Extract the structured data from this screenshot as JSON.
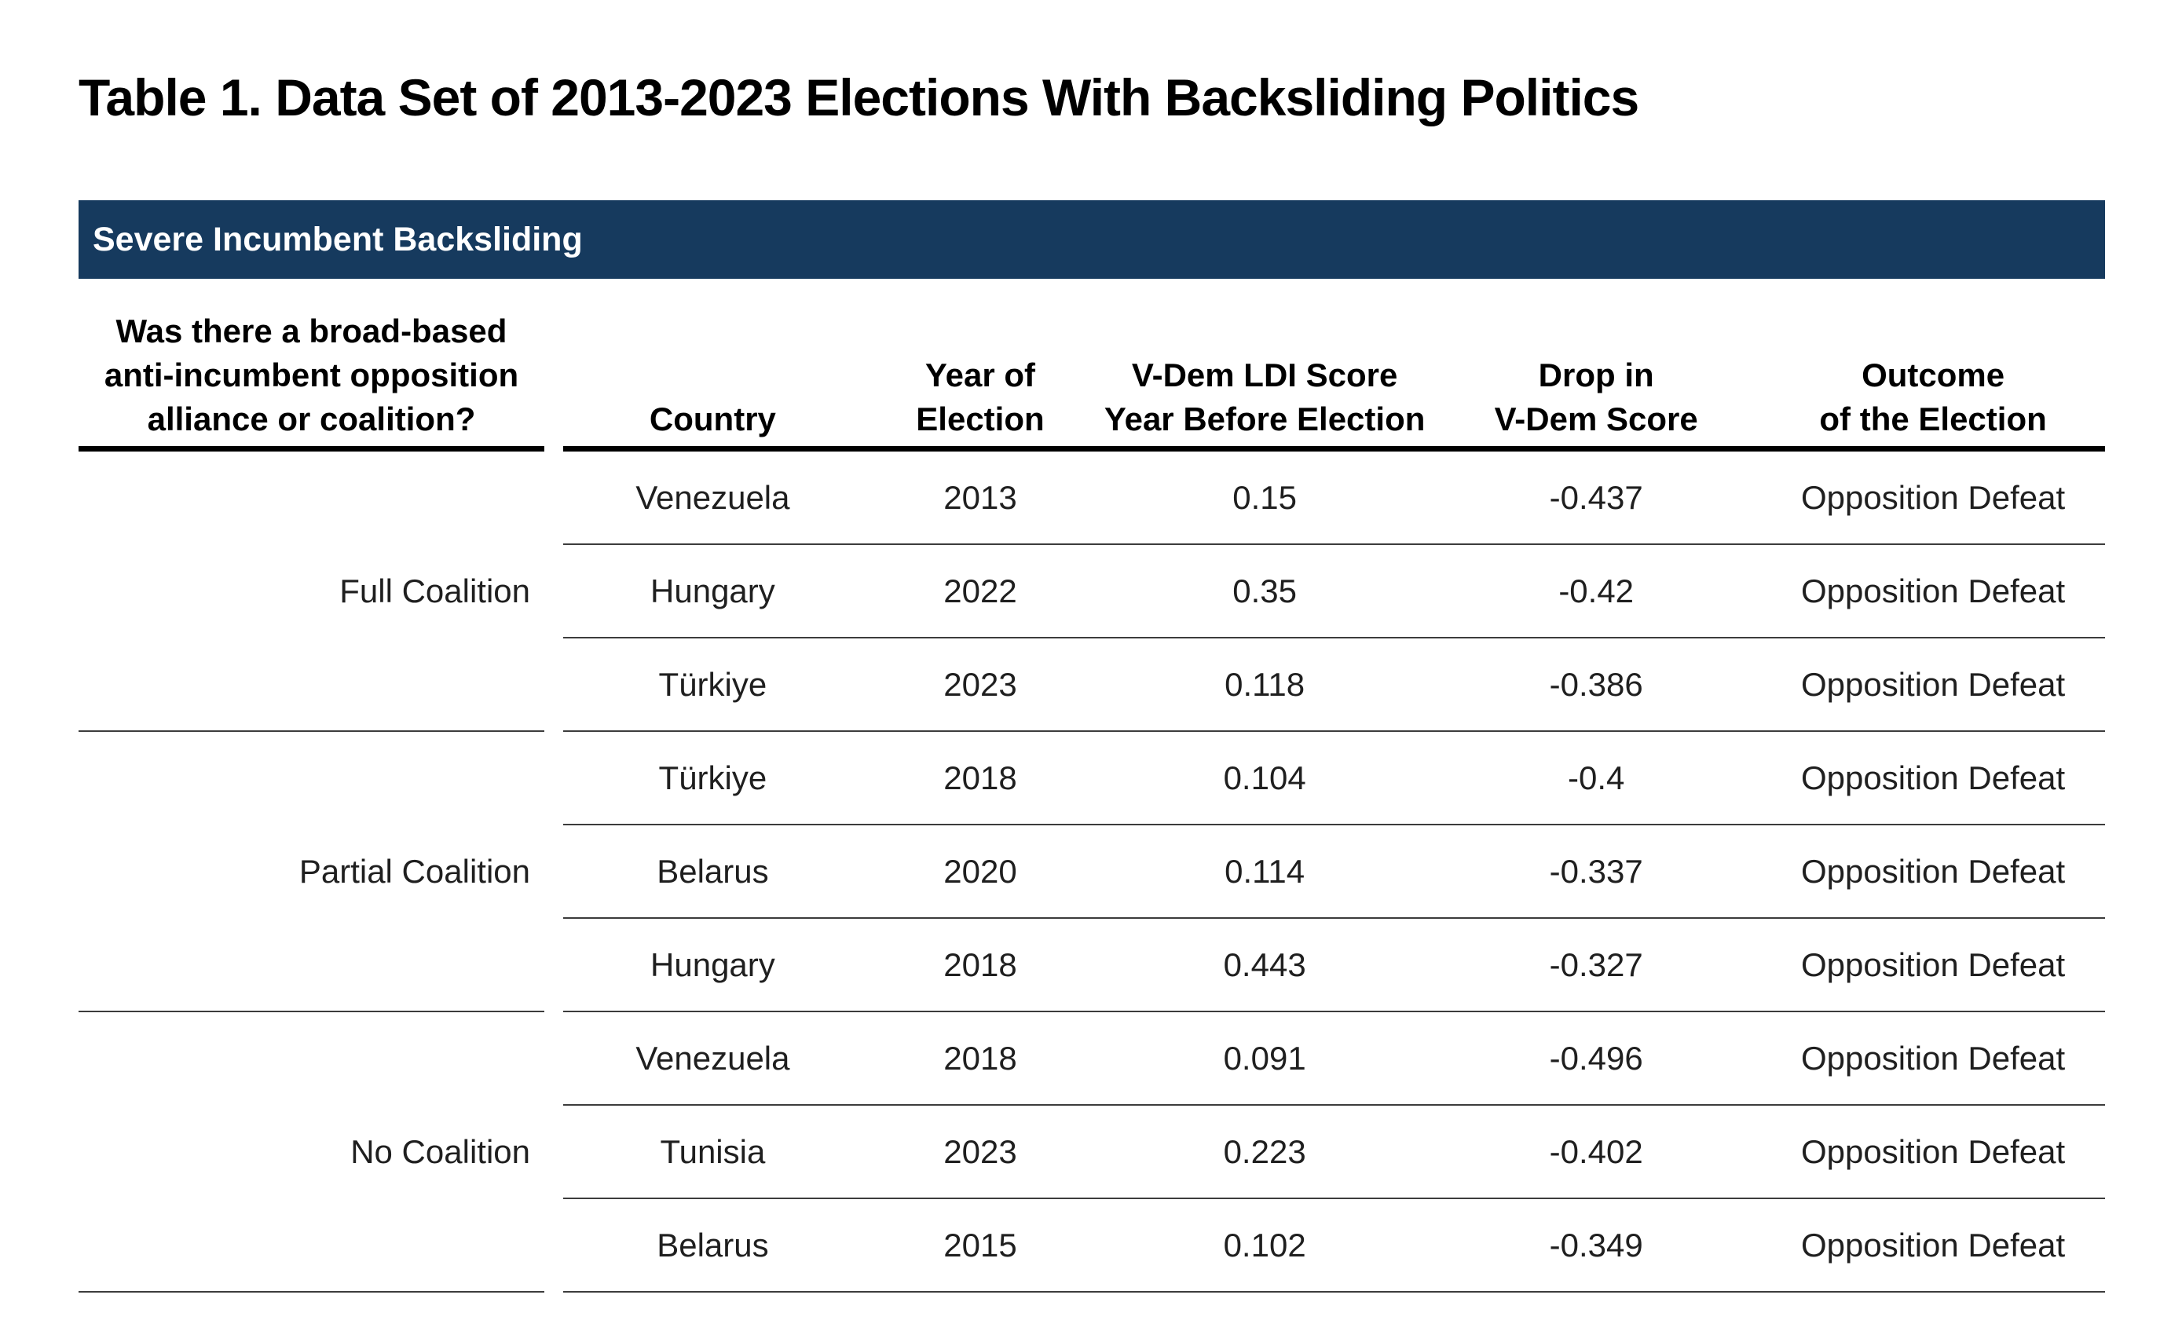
{
  "title": "Table 1. Data Set of 2013-2023 Elections With Backsliding Politics",
  "section_header": "Severe Incumbent Backsliding",
  "colors": {
    "navy_band": "#163A5E",
    "header_rule": "#000000",
    "row_rule": "#3c3c3c",
    "data_text": "#1f1f1f"
  },
  "table": {
    "coalition_header": "Was there a broad-based\nanti-incumbent opposition\nalliance or coalition?",
    "columns": [
      {
        "key": "country",
        "label": "Country"
      },
      {
        "key": "year",
        "label": "Year of\nElection"
      },
      {
        "key": "ldi_score",
        "label": "V-Dem LDI Score\nYear Before Election"
      },
      {
        "key": "drop",
        "label": "Drop in\nV-Dem Score"
      },
      {
        "key": "outcome",
        "label": "Outcome\nof the Election"
      }
    ],
    "groups": [
      {
        "label": "Full Coalition",
        "rows": [
          {
            "country": "Venezuela",
            "year": "2013",
            "ldi_score": "0.15",
            "drop": "-0.437",
            "outcome": "Opposition Defeat"
          },
          {
            "country": "Hungary",
            "year": "2022",
            "ldi_score": "0.35",
            "drop": "-0.42",
            "outcome": "Opposition Defeat"
          },
          {
            "country": "Türkiye",
            "year": "2023",
            "ldi_score": "0.118",
            "drop": "-0.386",
            "outcome": "Opposition Defeat"
          }
        ]
      },
      {
        "label": "Partial Coalition",
        "rows": [
          {
            "country": "Türkiye",
            "year": "2018",
            "ldi_score": "0.104",
            "drop": "-0.4",
            "outcome": "Opposition Defeat"
          },
          {
            "country": "Belarus",
            "year": "2020",
            "ldi_score": "0.114",
            "drop": "-0.337",
            "outcome": "Opposition Defeat"
          },
          {
            "country": "Hungary",
            "year": "2018",
            "ldi_score": "0.443",
            "drop": "-0.327",
            "outcome": "Opposition Defeat"
          }
        ]
      },
      {
        "label": "No Coalition",
        "rows": [
          {
            "country": "Venezuela",
            "year": "2018",
            "ldi_score": "0.091",
            "drop": "-0.496",
            "outcome": "Opposition Defeat"
          },
          {
            "country": "Tunisia",
            "year": "2023",
            "ldi_score": "0.223",
            "drop": "-0.402",
            "outcome": "Opposition Defeat"
          },
          {
            "country": "Belarus",
            "year": "2015",
            "ldi_score": "0.102",
            "drop": "-0.349",
            "outcome": "Opposition Defeat"
          }
        ]
      }
    ]
  }
}
